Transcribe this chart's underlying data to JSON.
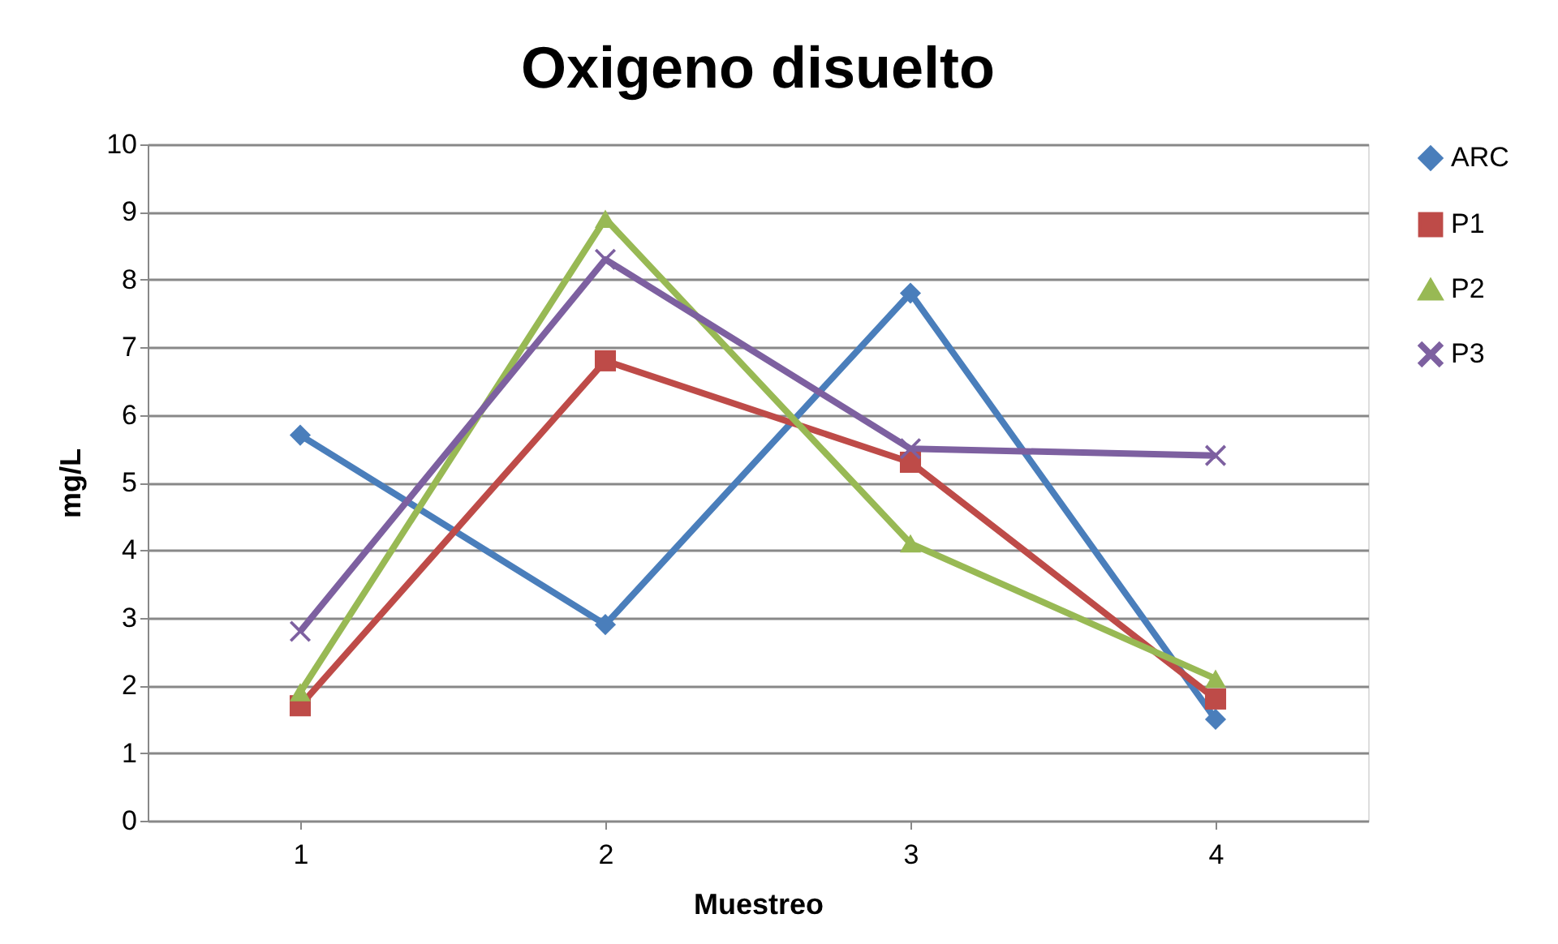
{
  "chart_data": {
    "type": "line",
    "title": "Oxigeno disuelto",
    "xlabel": "Muestreo",
    "ylabel": "mg/L",
    "categories": [
      "1",
      "2",
      "3",
      "4"
    ],
    "series": [
      {
        "name": "ARC",
        "color": "#4a7ebb",
        "marker": "diamond",
        "values": [
          5.7,
          2.9,
          7.8,
          1.5
        ]
      },
      {
        "name": "P1",
        "color": "#be4b48",
        "marker": "square",
        "values": [
          1.7,
          6.8,
          5.3,
          1.8
        ]
      },
      {
        "name": "P2",
        "color": "#98b954",
        "marker": "triangle",
        "values": [
          1.9,
          8.9,
          4.1,
          2.1
        ]
      },
      {
        "name": "P3",
        "color": "#7d60a0",
        "marker": "cross",
        "values": [
          2.8,
          8.3,
          5.5,
          5.4
        ]
      }
    ],
    "ylim": [
      0,
      10
    ],
    "yticks": [
      0,
      1,
      2,
      3,
      4,
      5,
      6,
      7,
      8,
      9,
      10
    ],
    "grid": "y",
    "legend": "right"
  }
}
